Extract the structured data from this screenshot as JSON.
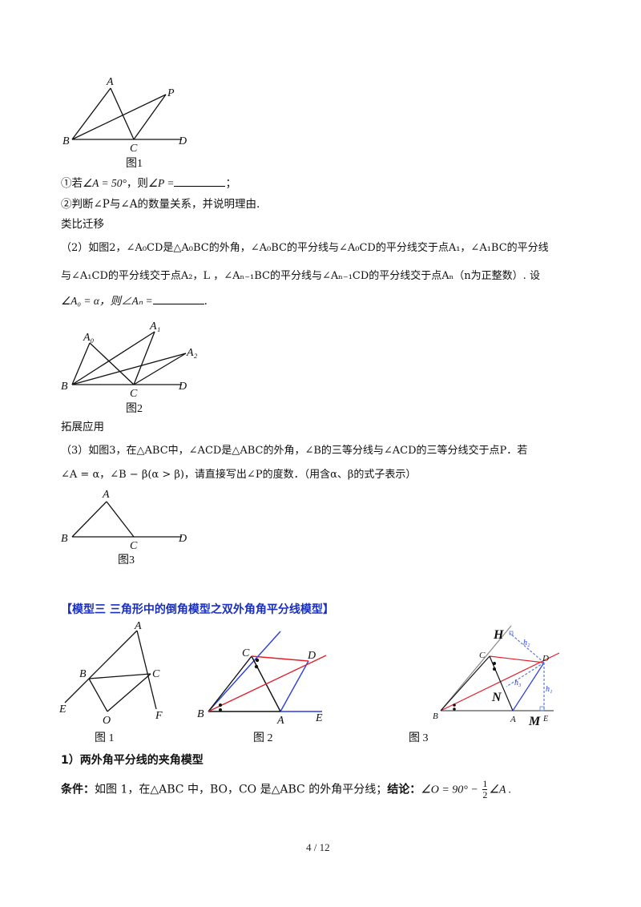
{
  "figures": {
    "fig1_caption": "图1",
    "fig2_caption": "图2",
    "fig3_caption": "图3",
    "model_fig1_caption": "图 1",
    "model_fig2_caption": "图 2",
    "model_fig3_caption": "图 3",
    "labels": {
      "A": "A",
      "B": "B",
      "C": "C",
      "D": "D",
      "P": "P",
      "A0": "A₀",
      "A1": "A₁",
      "A2": "A₂",
      "E": "E",
      "O": "O",
      "F": "F",
      "H": "H",
      "N": "N",
      "M": "M",
      "h1": "h₁",
      "h2": "h₂",
      "h3": "h₃"
    }
  },
  "part1": {
    "q1_prefix": "①若",
    "q1_cond": "∠A = 50°",
    "q1_mid": "，则",
    "q1_target": "∠P =",
    "q1_end": "；",
    "q2": "②判断∠P与∠A的数量关系，并说明理由."
  },
  "section_analogy": {
    "title": "类比迁移",
    "line1": "（2）如图2，∠A₀CD是△A₀BC的外角，∠A₀BC的平分线与∠A₀CD的平分线交于点A₁，∠A₁BC的平分线",
    "line2": "与∠A₁CD的平分线交于点A₂，L ，∠Aₙ₋₁BC的平分线与∠Aₙ₋₁CD的平分线交于点Aₙ（n为正整数）. 设",
    "line3_prefix": "∠A₀ = α，则∠Aₙ =",
    "line3_end": "."
  },
  "section_extend": {
    "title": "拓展应用",
    "line1": "（3）如图3，在△ABC中，∠ACD是△ABC的外角，∠B的三等分线与∠ACD的三等分线交于点P．若",
    "line2": "∠A = α，∠B − β(α > β)，请直接写出∠P的度数．（用含α、β的式子表示）"
  },
  "model": {
    "heading": "【模型三  三角形中的倒角模型之双外角角平分线模型】",
    "subheading": "1）两外角平分线的夹角模型",
    "condition_label": "条件：",
    "condition_text": "如图 1，在△ABC 中，BO，CO 是△ABC 的外角平分线；",
    "conclusion_label": "结论：",
    "conclusion_text": "∠O = 90° − ",
    "frac_num": "1",
    "frac_den": "2",
    "conclusion_tail": "∠A ."
  },
  "page": {
    "number": "4  /  12"
  },
  "colors": {
    "heading_blue": "#1a2fbf",
    "red_line": "#e0202a",
    "blue_line": "#2a3ee0",
    "dashed_blue": "#5a7bd8"
  }
}
